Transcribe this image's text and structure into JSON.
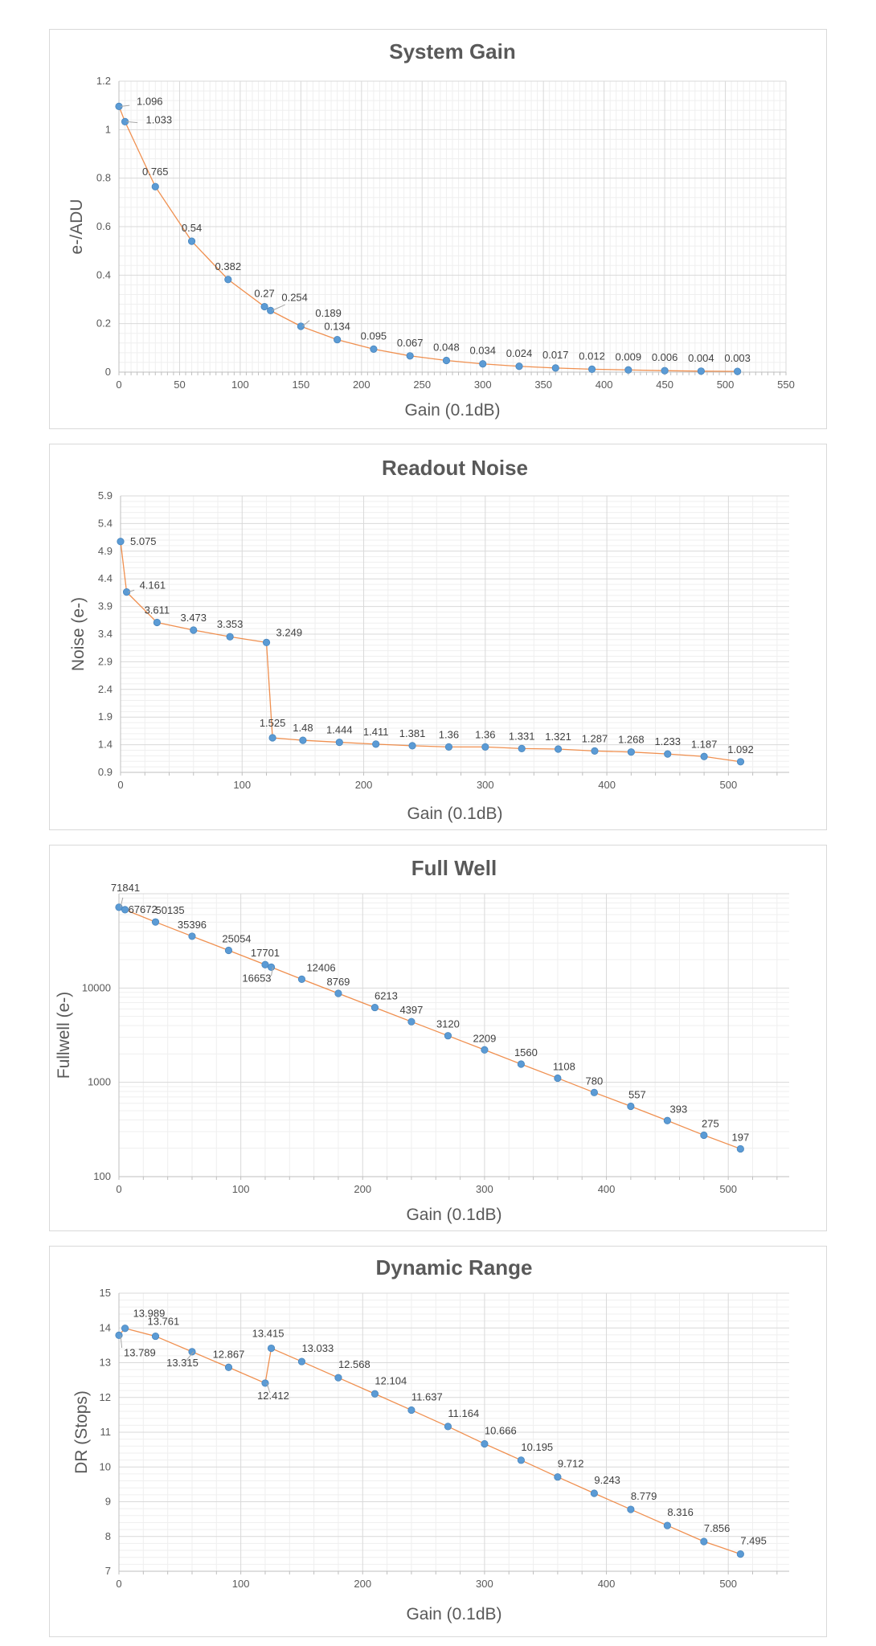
{
  "chart_data": [
    {
      "type": "line",
      "title": "System Gain",
      "xlabel": "Gain (0.1dB)",
      "ylabel": "e-/ADU",
      "yscale": "linear",
      "xlim": [
        0,
        550
      ],
      "ylim": [
        0,
        1.2
      ],
      "xticks": [
        0,
        50,
        100,
        150,
        200,
        250,
        300,
        350,
        400,
        450,
        500,
        550
      ],
      "yticks": [
        0,
        0.2,
        0.4,
        0.6,
        0.8,
        1,
        1.2
      ],
      "ytick_labels": [
        "0",
        "0.2",
        "0.4",
        "0.6",
        "0.8",
        "1",
        "1.2"
      ],
      "x": [
        0,
        5,
        30,
        60,
        90,
        120,
        125,
        150,
        180,
        210,
        240,
        270,
        300,
        330,
        360,
        390,
        420,
        450,
        480,
        510
      ],
      "values": [
        1.096,
        1.033,
        0.765,
        0.54,
        0.382,
        0.27,
        0.254,
        0.189,
        0.134,
        0.095,
        0.067,
        0.048,
        0.034,
        0.024,
        0.017,
        0.012,
        0.009,
        0.006,
        0.004,
        0.003
      ],
      "labels": [
        "1.096",
        "1.033",
        "0.765",
        "0.54",
        "0.382",
        "0.27",
        "0.254",
        "0.189",
        "0.134",
        "0.095",
        "0.067",
        "0.048",
        "0.034",
        "0.024",
        "0.017",
        "0.012",
        "0.009",
        "0.006",
        "0.004",
        "0.003"
      ]
    },
    {
      "type": "line",
      "title": "Readout Noise",
      "xlabel": "Gain (0.1dB)",
      "ylabel": "Noise (e-)",
      "yscale": "linear",
      "xlim": [
        0,
        550
      ],
      "ylim": [
        0.9,
        5.9
      ],
      "xticks": [
        0,
        100,
        200,
        300,
        400,
        500
      ],
      "yticks": [
        0.9,
        1.4,
        1.9,
        2.4,
        2.9,
        3.4,
        3.9,
        4.4,
        4.9,
        5.4,
        5.9
      ],
      "ytick_labels": [
        "0.9",
        "1.4",
        "1.9",
        "2.4",
        "2.9",
        "3.4",
        "3.9",
        "4.4",
        "4.9",
        "5.4",
        "5.9"
      ],
      "x": [
        0,
        5,
        30,
        60,
        90,
        120,
        125,
        150,
        180,
        210,
        240,
        270,
        300,
        330,
        360,
        390,
        420,
        450,
        480,
        510
      ],
      "values": [
        5.075,
        4.161,
        3.611,
        3.473,
        3.353,
        3.249,
        1.525,
        1.48,
        1.444,
        1.411,
        1.381,
        1.36,
        1.36,
        1.331,
        1.321,
        1.287,
        1.268,
        1.233,
        1.187,
        1.092
      ],
      "labels": [
        "5.075",
        "4.161",
        "3.611",
        "3.473",
        "3.353",
        "3.249",
        "1.525",
        "1.48",
        "1.444",
        "1.411",
        "1.381",
        "1.36",
        "1.36",
        "1.331",
        "1.321",
        "1.287",
        "1.268",
        "1.233",
        "1.187",
        "1.092"
      ]
    },
    {
      "type": "line",
      "title": "Full Well",
      "xlabel": "Gain (0.1dB)",
      "ylabel": "Fullwell (e-)",
      "yscale": "log",
      "xlim": [
        0,
        550
      ],
      "ylim": [
        100,
        100000
      ],
      "xticks": [
        0,
        100,
        200,
        300,
        400,
        500
      ],
      "yticks": [
        100,
        1000,
        10000
      ],
      "ytick_labels": [
        "100",
        "1000",
        "10000"
      ],
      "x": [
        0,
        5,
        30,
        60,
        90,
        120,
        125,
        150,
        180,
        210,
        240,
        270,
        300,
        330,
        360,
        390,
        420,
        450,
        480,
        510
      ],
      "values": [
        71841,
        67672,
        50135,
        35396,
        25054,
        17701,
        16653,
        12406,
        8769,
        6213,
        4397,
        3120,
        2209,
        1560,
        1108,
        780,
        557,
        393,
        275,
        197
      ],
      "labels": [
        "71841",
        "67672",
        "50135",
        "35396",
        "25054",
        "17701",
        "16653",
        "12406",
        "8769",
        "6213",
        "4397",
        "3120",
        "2209",
        "1560",
        "1108",
        "780",
        "557",
        "393",
        "275",
        "197"
      ]
    },
    {
      "type": "line",
      "title": "Dynamic Range",
      "xlabel": "Gain (0.1dB)",
      "ylabel": "DR (Stops)",
      "yscale": "linear",
      "xlim": [
        0,
        550
      ],
      "ylim": [
        7,
        15
      ],
      "xticks": [
        0,
        100,
        200,
        300,
        400,
        500
      ],
      "yticks": [
        7,
        8,
        9,
        10,
        11,
        12,
        13,
        14,
        15
      ],
      "ytick_labels": [
        "7",
        "8",
        "9",
        "10",
        "11",
        "12",
        "13",
        "14",
        "15"
      ],
      "x": [
        0,
        5,
        30,
        60,
        90,
        120,
        125,
        150,
        180,
        210,
        240,
        270,
        300,
        330,
        360,
        390,
        420,
        450,
        480,
        510
      ],
      "values": [
        13.789,
        13.989,
        13.761,
        13.315,
        12.867,
        12.412,
        13.415,
        13.033,
        12.568,
        12.104,
        11.637,
        11.164,
        10.666,
        10.195,
        9.712,
        9.243,
        8.779,
        8.316,
        7.856,
        7.495
      ],
      "labels": [
        "13.789",
        "13.989",
        "13.761",
        "13.315",
        "12.867",
        "12.412",
        "13.415",
        "13.033",
        "12.568",
        "12.104",
        "11.637",
        "11.164",
        "10.666",
        "10.195",
        "9.712",
        "9.243",
        "8.779",
        "8.316",
        "7.856",
        "7.495"
      ]
    }
  ]
}
